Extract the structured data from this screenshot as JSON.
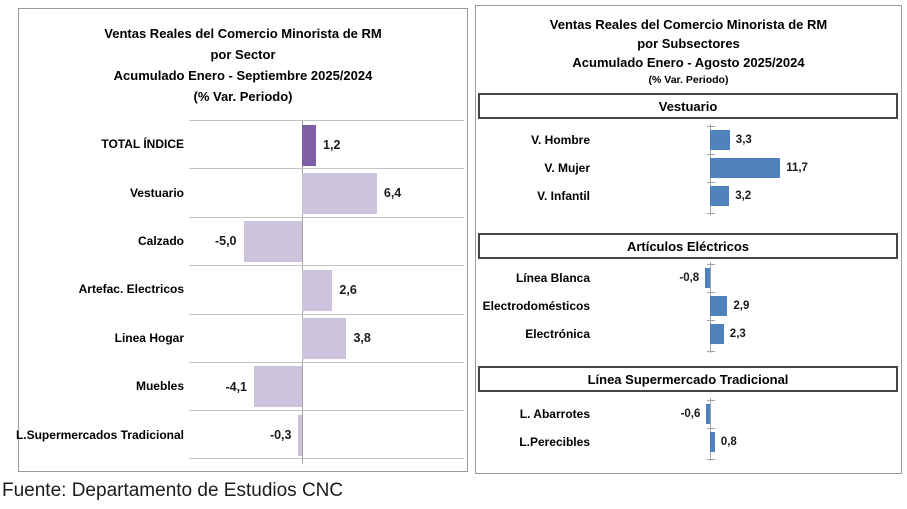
{
  "source_note": "Fuente: Departamento de Estudios CNC",
  "colors": {
    "bar_blue": "#4F81BD",
    "bar_purple_dark": "#7E5FA6",
    "bar_purple_light": "#CDC3DD",
    "gridline": "#C3C3C3",
    "axis": "#A3A3A3"
  },
  "chart_data": [
    {
      "type": "bar",
      "orientation": "horizontal",
      "title": "Ventas Reales del Comercio Minorista de RM por Sector",
      "subtitle": "Acumulado Enero - Septiembre 2025/2024 (% Var. Periodo)",
      "title_lines": [
        "Ventas Reales del Comercio Minorista de RM",
        "por Sector",
        "Acumulado Enero - Septiembre 2025/2024",
        "(% Var. Periodo)"
      ],
      "categories": [
        "TOTAL ÍNDICE",
        "Vestuario",
        "Calzado",
        "Artefac. Electricos",
        "Linea Hogar",
        "Muebles",
        "L.Supermercados Tradicional"
      ],
      "values": [
        1.2,
        6.4,
        -5.0,
        2.6,
        3.8,
        -4.1,
        -0.3
      ],
      "value_labels": [
        "1,2",
        "6,4",
        "-5,0",
        "2,6",
        "3,8",
        "-4,1",
        "-0,3"
      ],
      "bar_colors": [
        "#7E5FA6",
        "#CDC3DD",
        "#CDC3DD",
        "#CDC3DD",
        "#CDC3DD",
        "#CDC3DD",
        "#CDC3DD"
      ],
      "xlim": [
        -9.7,
        13.9
      ],
      "legend": "none",
      "grid": "horizontal category separator lines"
    },
    {
      "type": "bar",
      "orientation": "horizontal",
      "title": "Ventas Reales del Comercio Minorista de RM por Subsectores",
      "subtitle": "Acumulado Enero - Agosto 2025/2024 (% Var. Periodo)",
      "title_lines": [
        "Ventas Reales del Comercio Minorista de RM",
        "por Subsectores",
        "Acumulado Enero - Agosto  2025/2024"
      ],
      "subtitle_small": "(% Var. Periodo)",
      "bar_color": "#4F81BD",
      "legend": "none",
      "grid": "none",
      "sections": [
        {
          "header": "Vestuario",
          "categories": [
            "V. Hombre",
            "V. Mujer",
            "V. Infantil"
          ],
          "values": [
            3.3,
            11.7,
            3.2
          ],
          "value_labels": [
            "3,3",
            "11,7",
            "3,2"
          ]
        },
        {
          "header": "Artículos Eléctricos",
          "categories": [
            "Línea Blanca",
            "Electrodomésticos",
            "Electrónica"
          ],
          "values": [
            -0.8,
            2.9,
            2.3
          ],
          "value_labels": [
            "-0,8",
            "2,9",
            "2,3"
          ]
        },
        {
          "header": "Línea  Supermercado Tradicional",
          "categories": [
            "L. Abarrotes",
            "L.Perecibles"
          ],
          "values": [
            -0.6,
            0.8
          ],
          "value_labels": [
            "-0,6",
            "0,8"
          ]
        }
      ]
    }
  ]
}
